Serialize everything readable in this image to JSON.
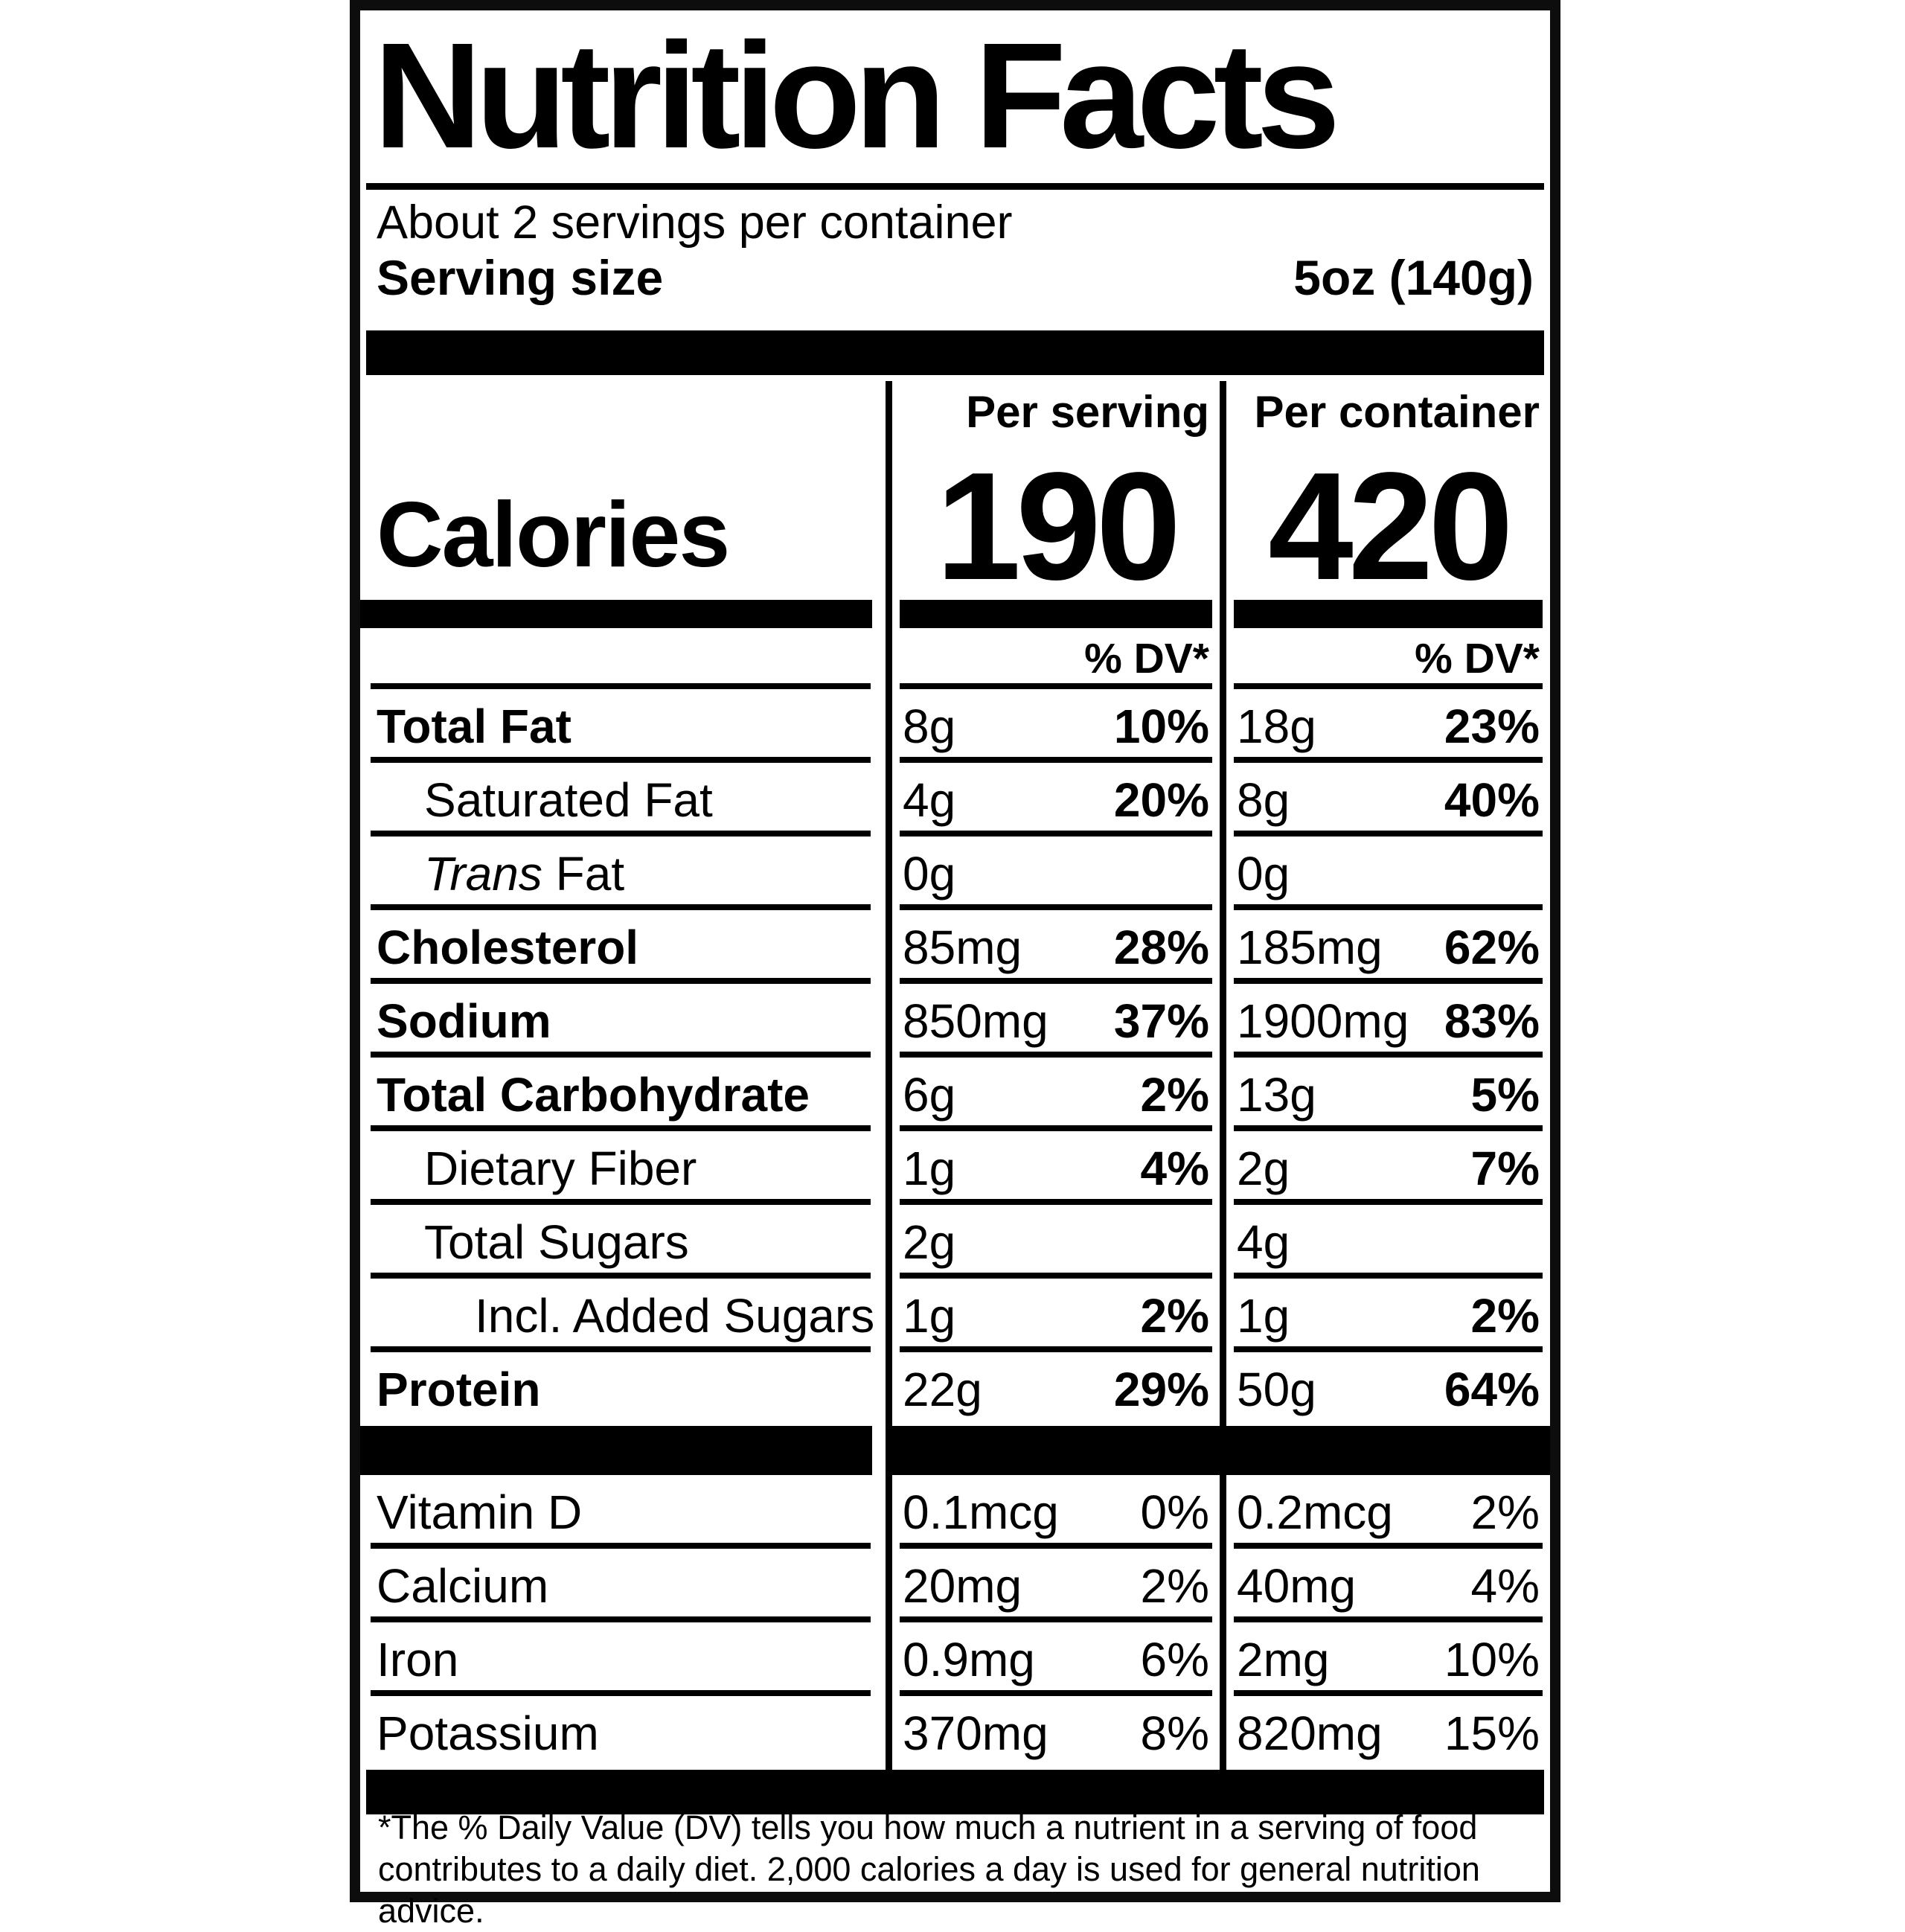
{
  "colors": {
    "ink": "#000000",
    "background": "#ffffff"
  },
  "title": "Nutrition Facts",
  "serving": {
    "servings_per_container": "About 2 servings per container",
    "serving_size_label": "Serving size",
    "serving_size_value": "5oz (140g)"
  },
  "calories": {
    "label": "Calories",
    "per_serving_header": "Per serving",
    "per_container_header": "Per container",
    "per_serving_value": "190",
    "per_container_value": "420",
    "dv_header": "% DV*"
  },
  "nutrients": [
    {
      "name": "Total Fat",
      "ps_amount": "8g",
      "ps_dv": "10%",
      "pc_amount": "18g",
      "pc_dv": "23%"
    },
    {
      "name": "Saturated Fat",
      "ps_amount": "4g",
      "ps_dv": "20%",
      "pc_amount": "8g",
      "pc_dv": "40%"
    },
    {
      "name_italic": "Trans",
      "name_regular": " Fat",
      "ps_amount": "0g",
      "ps_dv": "",
      "pc_amount": "0g",
      "pc_dv": ""
    },
    {
      "name": "Cholesterol",
      "ps_amount": "85mg",
      "ps_dv": "28%",
      "pc_amount": "185mg",
      "pc_dv": "62%"
    },
    {
      "name": "Sodium",
      "ps_amount": "850mg",
      "ps_dv": "37%",
      "pc_amount": "1900mg",
      "pc_dv": "83%"
    },
    {
      "name": "Total Carbohydrate",
      "ps_amount": "6g",
      "ps_dv": "2%",
      "pc_amount": "13g",
      "pc_dv": "5%"
    },
    {
      "name": "Dietary Fiber",
      "ps_amount": "1g",
      "ps_dv": "4%",
      "pc_amount": "2g",
      "pc_dv": "7%"
    },
    {
      "name": "Total Sugars",
      "ps_amount": "2g",
      "ps_dv": "",
      "pc_amount": "4g",
      "pc_dv": ""
    },
    {
      "name": "Incl. Added Sugars",
      "ps_amount": "1g",
      "ps_dv": "2%",
      "pc_amount": "1g",
      "pc_dv": "2%"
    },
    {
      "name": "Protein",
      "ps_amount": "22g",
      "ps_dv": "29%",
      "pc_amount": "50g",
      "pc_dv": "64%"
    }
  ],
  "micronutrients": [
    {
      "name": "Vitamin D",
      "ps_amount": "0.1mcg",
      "ps_dv": "0%",
      "pc_amount": "0.2mcg",
      "pc_dv": "2%"
    },
    {
      "name": "Calcium",
      "ps_amount": "20mg",
      "ps_dv": "2%",
      "pc_amount": "40mg",
      "pc_dv": "4%"
    },
    {
      "name": "Iron",
      "ps_amount": "0.9mg",
      "ps_dv": "6%",
      "pc_amount": "2mg",
      "pc_dv": "10%"
    },
    {
      "name": "Potassium",
      "ps_amount": "370mg",
      "ps_dv": "8%",
      "pc_amount": "820mg",
      "pc_dv": "15%"
    }
  ],
  "footnote_line1": "*The % Daily Value (DV) tells you how much a nutrient in a serving of food",
  "footnote_line2": "contributes to a daily diet. 2,000 calories a day is used for general nutrition advice."
}
